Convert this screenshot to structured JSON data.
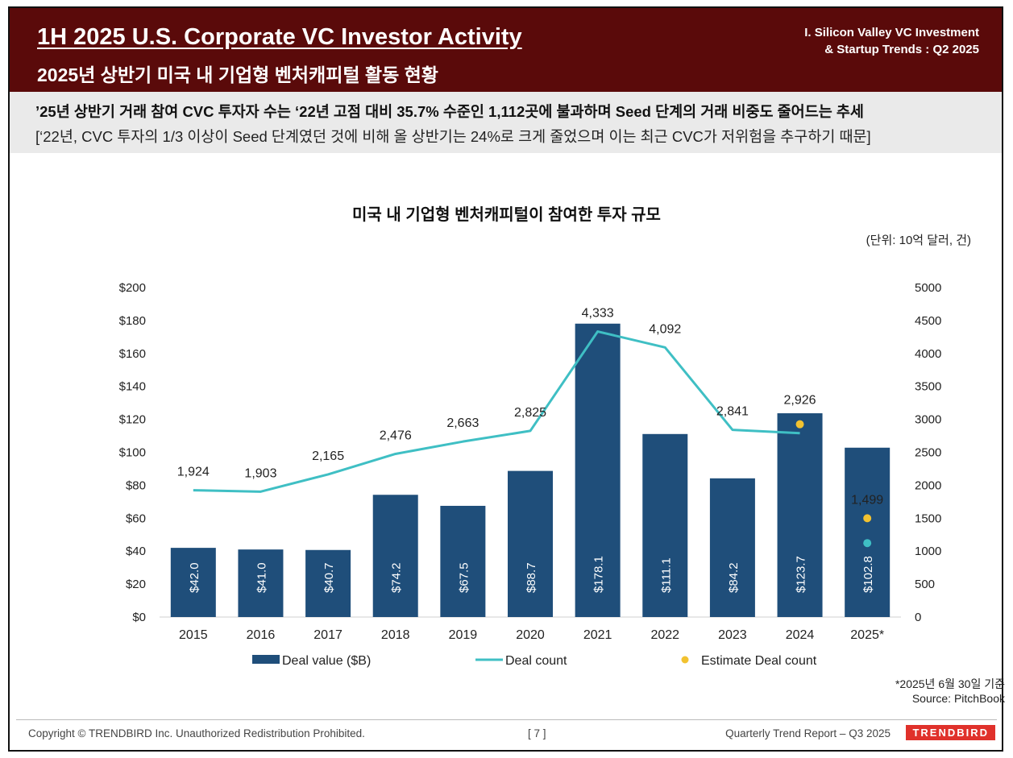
{
  "header": {
    "title_en": "1H 2025 U.S. Corporate VC Investor Activity",
    "title_ko": "2025년 상반기 미국 내 기업형 벤처캐피털 활동 현황",
    "section_line1": "I. Silicon Valley VC Investment",
    "section_line2": "& Startup Trends : Q2 2025",
    "bg_color": "#5a0a0a"
  },
  "summary": {
    "headline": "’25년 상반기 거래 참여 CVC 투자자 수는 ‘22년 고점 대비 35.7% 수준인 1,112곳에 불과하며 Seed 단계의 거래 비중도 줄어드는 추세",
    "detail": "[‘22년, CVC 투자의 1/3 이상이 Seed 단계였던 것에 비해 올 상반기는 24%로 크게 줄었으며 이는 최근 CVC가 저위험을 추구하기 때문]"
  },
  "chart_data": {
    "type": "bar",
    "title": "미국 내 기업형 벤처캐피털이 참여한 투자 규모",
    "unit_note": "(단위: 10억 달러, 건)",
    "categories": [
      "2015",
      "2016",
      "2017",
      "2018",
      "2019",
      "2020",
      "2021",
      "2022",
      "2023",
      "2024",
      "2025*"
    ],
    "bar_series": {
      "name": "Deal value ($B)",
      "values": [
        42.0,
        41.0,
        40.7,
        74.2,
        67.5,
        88.7,
        178.1,
        111.1,
        84.2,
        123.7,
        102.8
      ],
      "labels": [
        "$42.0",
        "$41.0",
        "$40.7",
        "$74.2",
        "$67.5",
        "$88.7",
        "$178.1",
        "$111.1",
        "$84.2",
        "$123.7",
        "$102.8"
      ],
      "color": "#1f4e7a"
    },
    "line_series": {
      "name": "Deal count",
      "values": [
        1924,
        1903,
        2165,
        2476,
        2663,
        2825,
        4333,
        4092,
        2841,
        2790,
        1122
      ],
      "labels": [
        "1,924",
        "1,903",
        "2,165",
        "2,476",
        "2,663",
        "2,825",
        "4,333",
        "4,092",
        "2,841",
        "",
        ""
      ],
      "color": "#3fbfc4"
    },
    "estimate_series": {
      "name": "Estimate Deal count",
      "points": [
        {
          "category": "2024",
          "value": 2926,
          "label": "2,926"
        },
        {
          "category": "2025*",
          "value": 1499,
          "label": "1,499"
        }
      ],
      "color": "#f2c230"
    },
    "y_left": {
      "min": 0,
      "max": 200,
      "step": 20,
      "ticks": [
        "$0",
        "$20",
        "$40",
        "$60",
        "$80",
        "$100",
        "$120",
        "$140",
        "$160",
        "$180",
        "$200"
      ]
    },
    "y_right": {
      "min": 0,
      "max": 5000,
      "step": 500,
      "ticks": [
        "0",
        "500",
        "1000",
        "1500",
        "2000",
        "2500",
        "3000",
        "3500",
        "4000",
        "4500",
        "5000"
      ]
    },
    "legend_position": "bottom",
    "grid": false
  },
  "notes": {
    "asof": "*2025년 6월 30일 기준",
    "source": "Source: PitchBook"
  },
  "footer": {
    "copyright": "Copyright © TRENDBIRD Inc. Unauthorized Redistribution Prohibited.",
    "page": "[ 7 ]",
    "report": "Quarterly Trend Report – Q3 2025",
    "brand": "TRENDBIRD",
    "brand_color": "#e0312b"
  }
}
